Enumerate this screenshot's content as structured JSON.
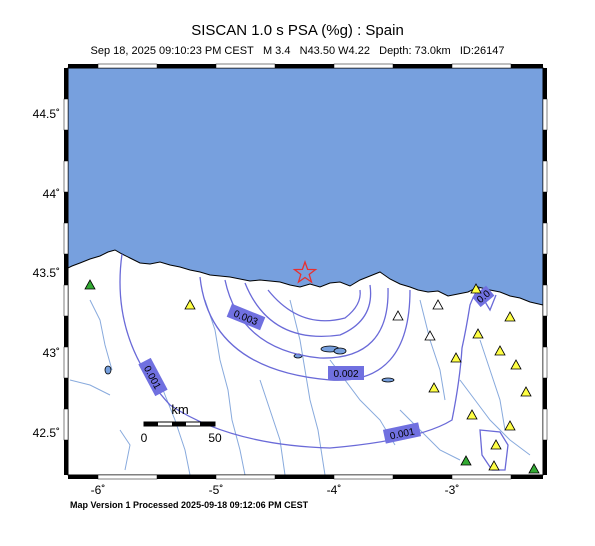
{
  "header": {
    "title": "SISCAN 1.0 s PSA (%g) : Spain",
    "event_date": "Sep 18, 2025 09:10:23 PM CEST",
    "magnitude": "M 3.4",
    "location": "N43.50 W4.22",
    "depth": "Depth: 73.0km",
    "event_id": "ID:26147"
  },
  "footer": {
    "version_text": "Map Version 1 Processed 2025-09-18 09:12:06 PM CEST"
  },
  "axes": {
    "lat_labels": [
      "44.5˚",
      "44˚",
      "43.5˚",
      "43˚",
      "42.5˚"
    ],
    "lon_labels": [
      "-6˚",
      "-5˚",
      "-4˚",
      "-3˚"
    ]
  },
  "contours": {
    "labels": [
      "0.003",
      "0.002",
      "0.001",
      "0.001",
      "0.0"
    ]
  },
  "scale_bar": {
    "unit": "km",
    "min_label": "0",
    "max_label": "50"
  },
  "colors": {
    "sea": "#77a0de",
    "land": "#ffffff",
    "contour": "#6a6ad8",
    "contour_label_bg": "#7070e0",
    "river": "#88aadd",
    "epicenter": "#e83030",
    "station_yellow": "#ffff44",
    "station_green": "#33aa33",
    "station_white": "#ffffff"
  },
  "epicenter_symbol": "star-icon"
}
